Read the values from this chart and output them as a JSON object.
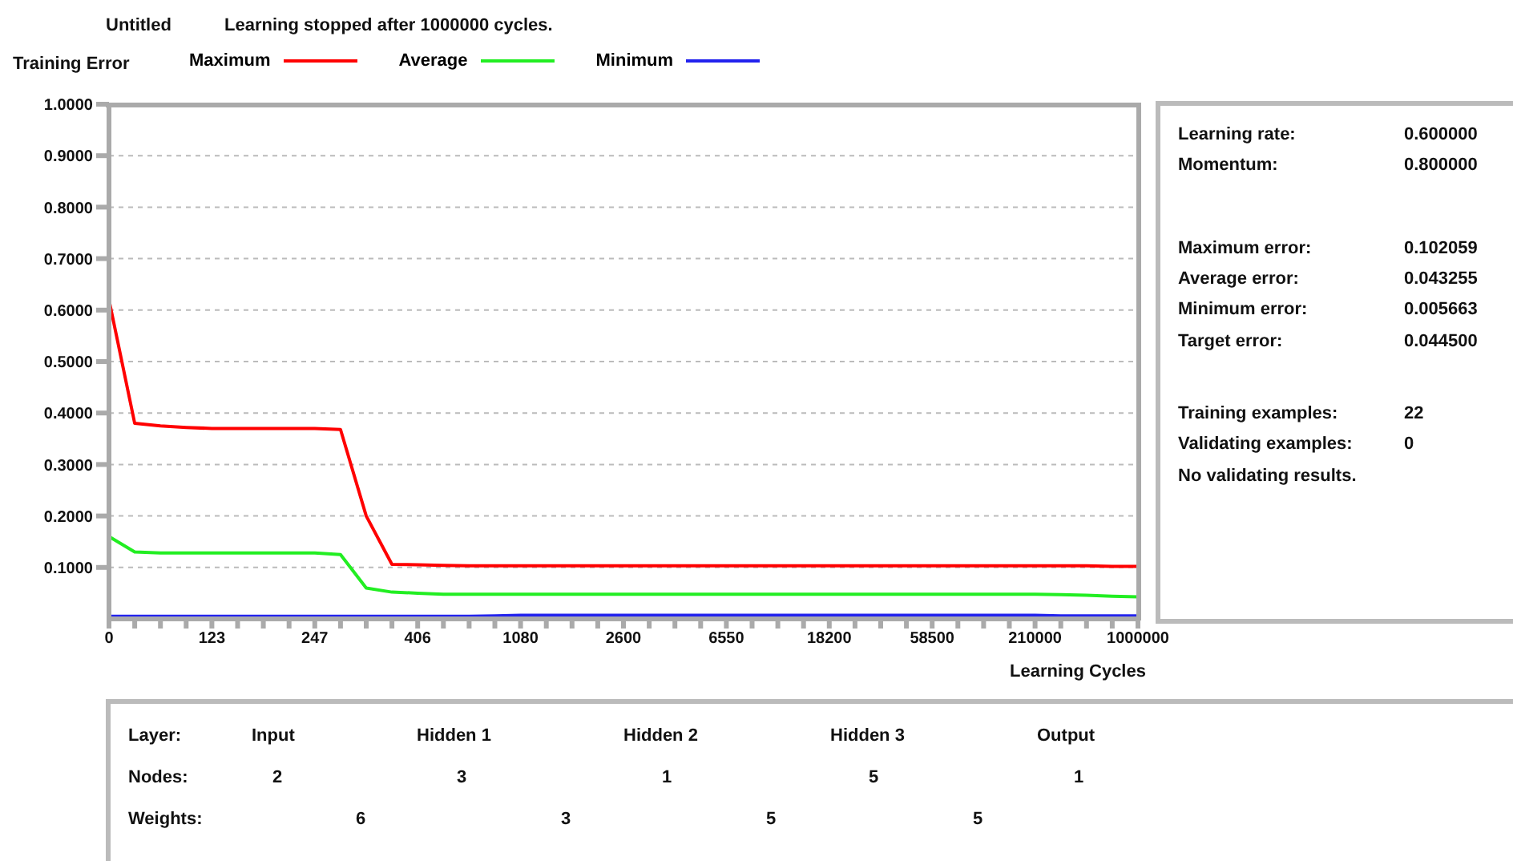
{
  "chart_data": {
    "type": "line",
    "title": "Untitled",
    "subtitle": "Learning stopped after 1000000 cycles.",
    "ylabel": "Training Error",
    "xlabel": "Learning Cycles",
    "categories": [
      "0",
      null,
      null,
      null,
      "123",
      null,
      null,
      null,
      "247",
      null,
      null,
      null,
      "406",
      null,
      null,
      null,
      "1080",
      null,
      null,
      null,
      "2600",
      null,
      null,
      null,
      "6550",
      null,
      null,
      null,
      "18200",
      null,
      null,
      null,
      "58500",
      null,
      null,
      null,
      "210000",
      null,
      null,
      null,
      "1000000"
    ],
    "series": [
      {
        "name": "Maximum",
        "color": "#ff0000",
        "values": [
          0.62,
          0.38,
          0.375,
          0.372,
          0.37,
          0.37,
          0.37,
          0.37,
          0.37,
          0.368,
          0.2,
          0.106,
          0.105,
          0.104,
          0.103,
          0.103,
          0.103,
          0.103,
          0.103,
          0.103,
          0.103,
          0.103,
          0.103,
          0.103,
          0.103,
          0.103,
          0.103,
          0.103,
          0.103,
          0.103,
          0.103,
          0.103,
          0.103,
          0.103,
          0.103,
          0.103,
          0.103,
          0.103,
          0.103,
          0.102,
          0.102
        ]
      },
      {
        "name": "Average",
        "color": "#22ee22",
        "values": [
          0.16,
          0.13,
          0.128,
          0.128,
          0.128,
          0.128,
          0.128,
          0.128,
          0.128,
          0.125,
          0.06,
          0.052,
          0.05,
          0.048,
          0.048,
          0.048,
          0.048,
          0.048,
          0.048,
          0.048,
          0.048,
          0.048,
          0.048,
          0.048,
          0.048,
          0.048,
          0.048,
          0.048,
          0.048,
          0.048,
          0.048,
          0.048,
          0.048,
          0.048,
          0.048,
          0.048,
          0.048,
          0.047,
          0.046,
          0.044,
          0.043
        ]
      },
      {
        "name": "Minimum",
        "color": "#2222ee",
        "values": [
          0.005,
          0.005,
          0.005,
          0.005,
          0.005,
          0.005,
          0.005,
          0.005,
          0.005,
          0.005,
          0.005,
          0.005,
          0.005,
          0.005,
          0.005,
          0.006,
          0.007,
          0.007,
          0.007,
          0.007,
          0.007,
          0.007,
          0.007,
          0.007,
          0.007,
          0.007,
          0.007,
          0.007,
          0.007,
          0.007,
          0.007,
          0.007,
          0.007,
          0.007,
          0.007,
          0.007,
          0.007,
          0.006,
          0.006,
          0.006,
          0.006
        ]
      }
    ],
    "ylim": [
      0,
      1
    ],
    "yticks": [
      {
        "value": 0.1,
        "label": "0.1000"
      },
      {
        "value": 0.2,
        "label": "0.2000"
      },
      {
        "value": 0.3,
        "label": "0.3000"
      },
      {
        "value": 0.4,
        "label": "0.4000"
      },
      {
        "value": 0.5,
        "label": "0.5000"
      },
      {
        "value": 0.6,
        "label": "0.6000"
      },
      {
        "value": 0.7,
        "label": "0.7000"
      },
      {
        "value": 0.8,
        "label": "0.8000"
      },
      {
        "value": 0.9,
        "label": "0.9000"
      },
      {
        "value": 1,
        "label": "1.0000"
      }
    ],
    "grid": "y",
    "legend": "top",
    "marker": "none",
    "line_style": "solid",
    "annotations": [
      "Learning rate:",
      "0.600000",
      "Momentum:",
      "0.800000",
      "Maximum error:",
      "0.102059",
      "Average error:",
      "0.043255",
      "Minimum error:",
      "0.005663",
      "Target error:",
      "0.044500",
      "Training examples:",
      "22",
      "Validating examples:",
      "0",
      "No validating results.",
      "Layer:",
      "Input",
      "Hidden 1",
      "Hidden 2",
      "Hidden 3",
      "Output",
      "Nodes:",
      "2",
      "3",
      "1",
      "5",
      "1",
      "Weights:",
      "6",
      "3",
      "5",
      "5"
    ]
  }
}
